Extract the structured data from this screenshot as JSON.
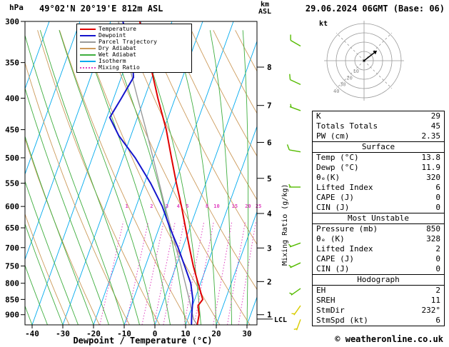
{
  "header": {
    "station_title": "49°02'N 20°19'E 812m ASL",
    "datetime_title": "29.06.2024 06GMT (Base: 06)"
  },
  "axes": {
    "pressure_unit": "hPa",
    "pressure_ticks": [
      300,
      350,
      400,
      450,
      500,
      550,
      600,
      650,
      700,
      750,
      800,
      850,
      900
    ],
    "temp_axis_label": "Dewpoint / Temperature (°C)",
    "temp_ticks": [
      -40,
      -30,
      -20,
      -10,
      0,
      10,
      20,
      30
    ],
    "km_asl_label": "km\nASL",
    "km_levels": [
      {
        "km": 1,
        "p": 900
      },
      {
        "km": 2,
        "p": 795
      },
      {
        "km": 3,
        "p": 701
      },
      {
        "km": 4,
        "p": 616
      },
      {
        "km": 5,
        "p": 540
      },
      {
        "km": 6,
        "p": 472
      },
      {
        "km": 7,
        "p": 411
      },
      {
        "km": 8,
        "p": 356
      }
    ],
    "mixing_ratio_axis_label": "Mixing Ratio (g/kg)",
    "lcl": {
      "label": "LCL",
      "p": 915
    }
  },
  "legend": [
    {
      "label": "Temperature",
      "color": "#e00000",
      "style": "solid"
    },
    {
      "label": "Dewpoint",
      "color": "#1414cc",
      "style": "solid"
    },
    {
      "label": "Parcel Trajectory",
      "color": "#9a9a9a",
      "style": "solid"
    },
    {
      "label": "Dry Adiabat",
      "color": "#cc9a5a",
      "style": "solid"
    },
    {
      "label": "Wet Adiabat",
      "color": "#3fae3f",
      "style": "solid"
    },
    {
      "label": "Isotherm",
      "color": "#00aaee",
      "style": "solid"
    },
    {
      "label": "Mixing Ratio",
      "color": "#e040c0",
      "style": "dotted"
    }
  ],
  "chart_data": {
    "type": "skewt-logp",
    "pressure_range_hpa": [
      300,
      935
    ],
    "temp_ticks_c": [
      -40,
      -30,
      -20,
      -10,
      0,
      10,
      20,
      30
    ],
    "temperature_profile": [
      [
        935,
        13.8
      ],
      [
        900,
        13.2
      ],
      [
        870,
        11.8
      ],
      [
        850,
        12.6
      ],
      [
        820,
        10.6
      ],
      [
        800,
        9.2
      ],
      [
        750,
        5.6
      ],
      [
        700,
        2.2
      ],
      [
        650,
        -1.4
      ],
      [
        600,
        -5.2
      ],
      [
        550,
        -9.6
      ],
      [
        500,
        -14.2
      ],
      [
        450,
        -19.2
      ],
      [
        400,
        -25.6
      ],
      [
        350,
        -32.4
      ],
      [
        300,
        -40.5
      ]
    ],
    "dewpoint_profile": [
      [
        935,
        11.9
      ],
      [
        900,
        10.8
      ],
      [
        850,
        9.4
      ],
      [
        800,
        6.8
      ],
      [
        750,
        2.8
      ],
      [
        700,
        -1.5
      ],
      [
        650,
        -6.5
      ],
      [
        600,
        -11.5
      ],
      [
        550,
        -18
      ],
      [
        500,
        -26
      ],
      [
        460,
        -34
      ],
      [
        430,
        -39
      ],
      [
        400,
        -37.5
      ],
      [
        370,
        -36
      ],
      [
        350,
        -38
      ],
      [
        300,
        -46
      ]
    ],
    "parcel_profile": [
      [
        935,
        13.8
      ],
      [
        915,
        11.9
      ],
      [
        850,
        8.2
      ],
      [
        800,
        5.0
      ],
      [
        750,
        1.6
      ],
      [
        700,
        -2.2
      ],
      [
        650,
        -6.2
      ],
      [
        600,
        -10.6
      ],
      [
        550,
        -15.2
      ],
      [
        500,
        -20.2
      ],
      [
        450,
        -25.8
      ],
      [
        400,
        -32.2
      ],
      [
        350,
        -39.4
      ],
      [
        300,
        -47.5
      ]
    ],
    "mixing_ratio_lines_gkg": [
      1,
      2,
      3,
      4,
      5,
      8,
      10,
      15,
      20,
      25
    ],
    "isotherm_step_c": 10,
    "dry_adiabat_theta_k": [
      250,
      440,
      10
    ],
    "wet_adiabat_start_c": [
      -60,
      35,
      5
    ],
    "wind_barbs": [
      {
        "p": 329,
        "dir": 300,
        "spd": 10,
        "color": "#55bb00"
      },
      {
        "p": 380,
        "dir": 295,
        "spd": 10,
        "color": "#55bb00"
      },
      {
        "p": 419,
        "dir": 290,
        "spd": 5,
        "color": "#55bb00"
      },
      {
        "p": 489,
        "dir": 280,
        "spd": 10,
        "color": "#55bb00"
      },
      {
        "p": 558,
        "dir": 270,
        "spd": 5,
        "color": "#55bb00"
      },
      {
        "p": 688,
        "dir": 250,
        "spd": 5,
        "color": "#55bb00"
      },
      {
        "p": 741,
        "dir": 245,
        "spd": 5,
        "color": "#55bb00"
      },
      {
        "p": 816,
        "dir": 235,
        "spd": 5,
        "color": "#55bb00"
      },
      {
        "p": 870,
        "dir": 215,
        "spd": 5,
        "color": "#d9cc00"
      },
      {
        "p": 916,
        "dir": 200,
        "spd": 5,
        "color": "#d9cc00"
      }
    ]
  },
  "hodograph": {
    "unit_label": "kt",
    "ring_step_kt": 10,
    "ring_labels": [
      10,
      20,
      30,
      40
    ],
    "storm_dir_deg": 232,
    "storm_spd_kt": 6
  },
  "table": {
    "indices": [
      {
        "label": "K",
        "value": "29"
      },
      {
        "label": "Totals Totals",
        "value": "45"
      },
      {
        "label": "PW (cm)",
        "value": "2.35"
      }
    ],
    "sections": [
      {
        "title": "Surface",
        "rows": [
          {
            "label": "Temp (°C)",
            "value": "13.8"
          },
          {
            "label": "Dewp (°C)",
            "value": "11.9"
          },
          {
            "label": "θₑ(K)",
            "value": "320"
          },
          {
            "label": "Lifted Index",
            "value": "6"
          },
          {
            "label": "CAPE (J)",
            "value": "0"
          },
          {
            "label": "CIN (J)",
            "value": "0"
          }
        ]
      },
      {
        "title": "Most Unstable",
        "rows": [
          {
            "label": "Pressure (mb)",
            "value": "850"
          },
          {
            "label": "θₑ (K)",
            "value": "328"
          },
          {
            "label": "Lifted Index",
            "value": "2"
          },
          {
            "label": "CAPE (J)",
            "value": "0"
          },
          {
            "label": "CIN (J)",
            "value": "0"
          }
        ]
      },
      {
        "title": "Hodograph",
        "rows": [
          {
            "label": "EH",
            "value": "2"
          },
          {
            "label": "SREH",
            "value": "11"
          },
          {
            "label": "StmDir",
            "value": "232°"
          },
          {
            "label": "StmSpd (kt)",
            "value": "6"
          }
        ]
      }
    ]
  },
  "footer": {
    "credit": "© weatheronline.co.uk"
  },
  "colors": {
    "temperature": "#e00000",
    "dewpoint": "#1414cc",
    "parcel": "#9a9a9a",
    "dry_adiabat": "#cc9a5a",
    "wet_adiabat": "#3fae3f",
    "isotherm": "#00aaee",
    "mixing_ratio": "#e040c0",
    "axis": "#000000",
    "hodograph_grid": "#999999",
    "barb_green": "#55bb00",
    "barb_yellow": "#d9cc00"
  }
}
